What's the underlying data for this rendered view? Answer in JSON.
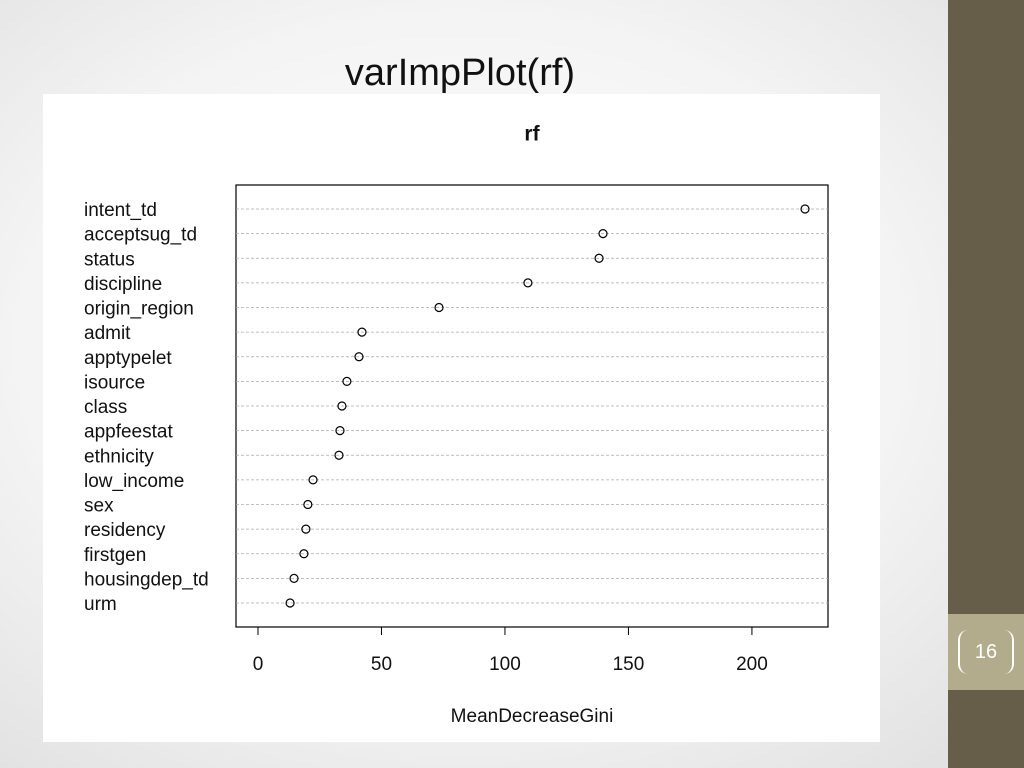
{
  "slide_title": "varImpPlot(rf)",
  "page_number": "16",
  "chart_data": {
    "type": "dot",
    "title": "rf",
    "x_label": "MeanDecreaseGini",
    "categories": [
      "intent_td",
      "acceptsug_td",
      "status",
      "discipline",
      "origin_region",
      "admit",
      "apptypelet",
      "isource",
      "class",
      "appfeestat",
      "ethnicity",
      "low_income",
      "sex",
      "residency",
      "firstgen",
      "housingdep_td",
      "urm"
    ],
    "values": [
      221.5,
      139.7,
      138.1,
      109.3,
      73.3,
      42.1,
      40.9,
      36.0,
      34.0,
      33.2,
      32.8,
      22.3,
      20.2,
      19.4,
      18.6,
      14.6,
      13.0
    ],
    "xlim": [
      -8.9,
      230.8
    ],
    "xticks": [
      0,
      50,
      100,
      150,
      200
    ],
    "grid": true,
    "color": "#000000"
  }
}
